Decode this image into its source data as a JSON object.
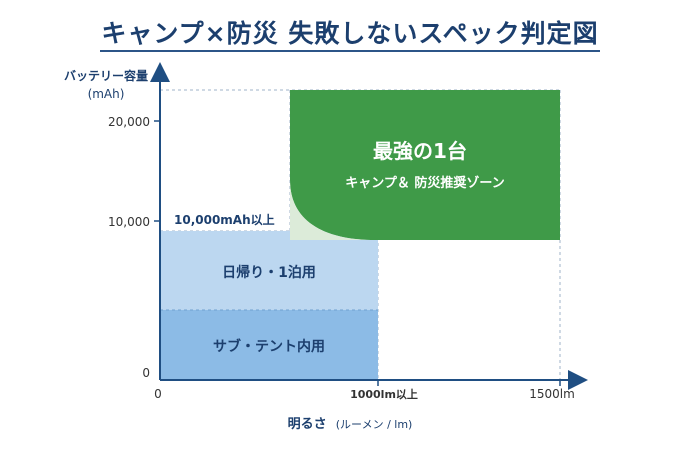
{
  "title": "キャンプ×防災 失敗しないスペック判定図",
  "axes": {
    "y_label_line1": "バッテリー容量",
    "y_label_line2": "(mAh)",
    "y_ticks": [
      "20,000",
      "10,000",
      "0"
    ],
    "x_ticks": [
      "0",
      "1000lm以上",
      "1500lm"
    ],
    "x_label": "明るさ",
    "x_label_unit": "(ルーメン / lm)"
  },
  "zones": {
    "best_line1": "最強の1台",
    "best_line2": "キャンプ＆ 防災推奨ゾーン",
    "threshold_label": "10,000mAh以上",
    "day_trip": "日帰り・1泊用",
    "sub_tent": "サブ・テント内用"
  },
  "colors": {
    "axis": "#1f4e82",
    "best_zone": "#3f9a48",
    "day_trip_zone": "#bcd7f0",
    "sub_tent_zone": "#8cbbe6",
    "title": "#1c3f6e"
  }
}
